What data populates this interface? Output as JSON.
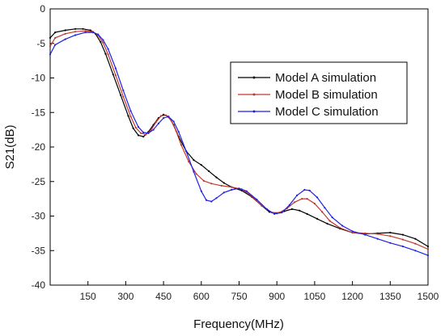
{
  "chart_data": {
    "type": "line",
    "title": "",
    "xlabel": "Frequency(MHz)",
    "ylabel": "S21(dB)",
    "xlim": [
      0,
      1500
    ],
    "ylim": [
      -40,
      0
    ],
    "xticks": [
      150,
      300,
      450,
      600,
      750,
      900,
      1050,
      1200,
      1350,
      1500
    ],
    "yticks": [
      0,
      -5,
      -10,
      -15,
      -20,
      -25,
      -30,
      -35,
      -40
    ],
    "grid": false,
    "legend_position": "top-right",
    "series": [
      {
        "name": "Model A simulation",
        "color": "#000000",
        "points": [
          [
            0,
            -4.2
          ],
          [
            20,
            -3.4
          ],
          [
            60,
            -3.1
          ],
          [
            100,
            -2.9
          ],
          [
            130,
            -2.9
          ],
          [
            160,
            -3.1
          ],
          [
            180,
            -3.6
          ],
          [
            200,
            -4.8
          ],
          [
            220,
            -6.5
          ],
          [
            250,
            -9.5
          ],
          [
            280,
            -12.5
          ],
          [
            310,
            -15.5
          ],
          [
            330,
            -17.3
          ],
          [
            350,
            -18.3
          ],
          [
            370,
            -18.5
          ],
          [
            390,
            -17.8
          ],
          [
            410,
            -16.8
          ],
          [
            430,
            -15.8
          ],
          [
            450,
            -15.3
          ],
          [
            470,
            -15.6
          ],
          [
            490,
            -16.8
          ],
          [
            510,
            -18.5
          ],
          [
            540,
            -20.6
          ],
          [
            570,
            -21.9
          ],
          [
            600,
            -22.6
          ],
          [
            630,
            -23.5
          ],
          [
            660,
            -24.4
          ],
          [
            690,
            -25.2
          ],
          [
            720,
            -25.8
          ],
          [
            760,
            -26.3
          ],
          [
            800,
            -27.2
          ],
          [
            840,
            -28.5
          ],
          [
            870,
            -29.4
          ],
          [
            900,
            -29.6
          ],
          [
            930,
            -29.3
          ],
          [
            960,
            -29.0
          ],
          [
            990,
            -29.2
          ],
          [
            1020,
            -29.7
          ],
          [
            1060,
            -30.4
          ],
          [
            1100,
            -31.1
          ],
          [
            1150,
            -31.8
          ],
          [
            1200,
            -32.4
          ],
          [
            1250,
            -32.6
          ],
          [
            1300,
            -32.5
          ],
          [
            1350,
            -32.4
          ],
          [
            1400,
            -32.7
          ],
          [
            1450,
            -33.3
          ],
          [
            1500,
            -34.4
          ]
        ]
      },
      {
        "name": "Model B simulation",
        "color": "#c0392b",
        "points": [
          [
            0,
            -5.4
          ],
          [
            20,
            -4.2
          ],
          [
            60,
            -3.6
          ],
          [
            100,
            -3.3
          ],
          [
            140,
            -3.2
          ],
          [
            170,
            -3.3
          ],
          [
            190,
            -3.8
          ],
          [
            210,
            -4.9
          ],
          [
            230,
            -6.6
          ],
          [
            260,
            -9.6
          ],
          [
            290,
            -12.7
          ],
          [
            320,
            -15.6
          ],
          [
            340,
            -17.2
          ],
          [
            360,
            -18.0
          ],
          [
            380,
            -18.2
          ],
          [
            400,
            -17.6
          ],
          [
            420,
            -16.4
          ],
          [
            440,
            -15.5
          ],
          [
            460,
            -15.4
          ],
          [
            480,
            -16.1
          ],
          [
            500,
            -17.7
          ],
          [
            520,
            -19.7
          ],
          [
            550,
            -22.1
          ],
          [
            580,
            -23.9
          ],
          [
            610,
            -24.9
          ],
          [
            640,
            -25.3
          ],
          [
            680,
            -25.6
          ],
          [
            720,
            -25.8
          ],
          [
            760,
            -26.1
          ],
          [
            800,
            -27.1
          ],
          [
            840,
            -28.5
          ],
          [
            880,
            -29.5
          ],
          [
            910,
            -29.5
          ],
          [
            940,
            -28.9
          ],
          [
            970,
            -28.0
          ],
          [
            1000,
            -27.5
          ],
          [
            1020,
            -27.5
          ],
          [
            1050,
            -28.2
          ],
          [
            1080,
            -29.4
          ],
          [
            1110,
            -30.7
          ],
          [
            1150,
            -31.7
          ],
          [
            1200,
            -32.4
          ],
          [
            1250,
            -32.5
          ],
          [
            1300,
            -32.6
          ],
          [
            1350,
            -32.9
          ],
          [
            1400,
            -33.4
          ],
          [
            1450,
            -34.0
          ],
          [
            1500,
            -34.8
          ]
        ]
      },
      {
        "name": "Model C simulation",
        "color": "#1f1fe6",
        "points": [
          [
            0,
            -6.6
          ],
          [
            20,
            -5.2
          ],
          [
            60,
            -4.4
          ],
          [
            100,
            -3.8
          ],
          [
            140,
            -3.4
          ],
          [
            170,
            -3.4
          ],
          [
            190,
            -3.7
          ],
          [
            210,
            -4.5
          ],
          [
            230,
            -5.8
          ],
          [
            260,
            -8.6
          ],
          [
            290,
            -11.8
          ],
          [
            320,
            -14.8
          ],
          [
            350,
            -17.1
          ],
          [
            370,
            -17.9
          ],
          [
            390,
            -18.0
          ],
          [
            410,
            -17.5
          ],
          [
            430,
            -16.6
          ],
          [
            450,
            -15.8
          ],
          [
            470,
            -15.6
          ],
          [
            490,
            -16.3
          ],
          [
            510,
            -17.8
          ],
          [
            540,
            -20.6
          ],
          [
            570,
            -23.6
          ],
          [
            600,
            -26.4
          ],
          [
            620,
            -27.7
          ],
          [
            640,
            -27.9
          ],
          [
            660,
            -27.4
          ],
          [
            690,
            -26.6
          ],
          [
            720,
            -26.2
          ],
          [
            750,
            -26.0
          ],
          [
            780,
            -26.4
          ],
          [
            820,
            -27.6
          ],
          [
            860,
            -29.0
          ],
          [
            890,
            -29.7
          ],
          [
            920,
            -29.5
          ],
          [
            950,
            -28.4
          ],
          [
            980,
            -27.0
          ],
          [
            1010,
            -26.2
          ],
          [
            1030,
            -26.3
          ],
          [
            1060,
            -27.3
          ],
          [
            1090,
            -28.8
          ],
          [
            1120,
            -30.2
          ],
          [
            1160,
            -31.4
          ],
          [
            1200,
            -32.2
          ],
          [
            1250,
            -32.7
          ],
          [
            1300,
            -33.3
          ],
          [
            1350,
            -33.9
          ],
          [
            1400,
            -34.4
          ],
          [
            1450,
            -35.0
          ],
          [
            1500,
            -35.7
          ]
        ]
      }
    ]
  }
}
